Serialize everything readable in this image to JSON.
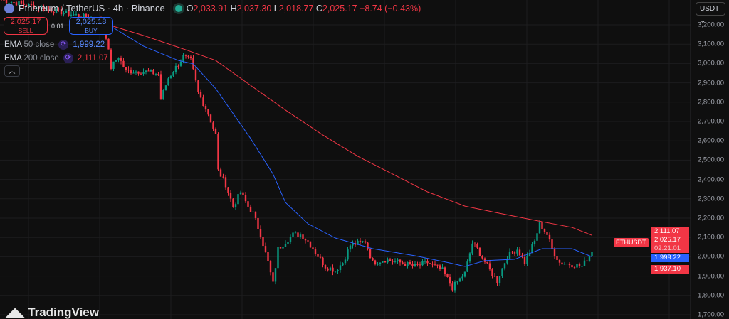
{
  "header": {
    "symbol": "Ethereum / TetherUS · 4h · Binance",
    "open_label": "O",
    "open": "2,033.91",
    "high_label": "H",
    "high": "2,037.30",
    "low_label": "L",
    "low": "2,018.77",
    "close_label": "C",
    "close": "2,025.17",
    "change": "−8.74 (−0.43%)"
  },
  "trade": {
    "sell_price": "2,025.17",
    "sell_label": "SELL",
    "spread": "0.01",
    "buy_price": "2,025.18",
    "buy_label": "BUY"
  },
  "indicators": [
    {
      "label": "EMA",
      "params": "50 close",
      "value": "1,999.22",
      "color": "#2962ff"
    },
    {
      "label": "EMA",
      "params": "200 close",
      "value": "2,111.07",
      "color": "#f23645"
    }
  ],
  "currency": "USDT ⌄",
  "price_labels": {
    "ema200": "2,111.07",
    "last": "2,025.17",
    "countdown": "02:21:01",
    "ema50": "1,999.22",
    "level": "1,937.10",
    "symbol_tag": "ETHUSDT"
  },
  "logo": "TradingView",
  "colors": {
    "up": "#089981",
    "down": "#f23645",
    "ema50": "#2962ff",
    "ema200": "#f23645",
    "background": "#0f0f0f"
  },
  "chart_data": {
    "type": "candlestick",
    "xlabel": "",
    "ylabel": "",
    "ylim": [
      1680,
      3330
    ],
    "y_ticks": [
      "3,200.00",
      "3,100.00",
      "3,000.00",
      "2,900.00",
      "2,800.00",
      "2,700.00",
      "2,600.00",
      "2,500.00",
      "2,400.00",
      "2,300.00",
      "2,200.00",
      "2,100.00",
      "2,000.00",
      "1,900.00",
      "1,800.00",
      "1,700.00"
    ],
    "grid": true,
    "close_path": [
      [
        0,
        3330
      ],
      [
        41,
        3220
      ],
      [
        44,
        2980
      ],
      [
        47,
        3035
      ],
      [
        50,
        2960
      ],
      [
        57,
        2960
      ],
      [
        63,
        2945
      ],
      [
        64,
        2815
      ],
      [
        67,
        2925
      ],
      [
        73,
        3035
      ],
      [
        76,
        3015
      ],
      [
        79,
        2850
      ],
      [
        83,
        2740
      ],
      [
        86,
        2630
      ],
      [
        87,
        2445
      ],
      [
        90,
        2375
      ],
      [
        93,
        2260
      ],
      [
        96,
        2335
      ],
      [
        99,
        2260
      ],
      [
        101,
        2225
      ],
      [
        104,
        2115
      ],
      [
        107,
        1970
      ],
      [
        109,
        1860
      ],
      [
        111,
        2040
      ],
      [
        114,
        2080
      ],
      [
        117,
        2115
      ],
      [
        120,
        2115
      ],
      [
        123,
        2080
      ],
      [
        127,
        2005
      ],
      [
        130,
        1950
      ],
      [
        134,
        1930
      ],
      [
        137,
        1970
      ],
      [
        140,
        2060
      ],
      [
        146,
        2080
      ],
      [
        149,
        1970
      ],
      [
        154,
        1985
      ],
      [
        160,
        1970
      ],
      [
        166,
        1950
      ],
      [
        171,
        1970
      ],
      [
        177,
        1930
      ],
      [
        181,
        1840
      ],
      [
        186,
        1915
      ],
      [
        189,
        2070
      ],
      [
        191,
        2040
      ],
      [
        196,
        1930
      ],
      [
        199,
        1875
      ],
      [
        203,
        2005
      ],
      [
        207,
        2040
      ],
      [
        210,
        1970
      ],
      [
        214,
        2080
      ],
      [
        216,
        2170
      ],
      [
        219,
        2115
      ],
      [
        221,
        2040
      ],
      [
        224,
        1970
      ],
      [
        229,
        1960
      ],
      [
        233,
        1950
      ],
      [
        237,
        2025
      ]
    ],
    "series": [
      {
        "name": "EMA 50 close",
        "values": [
          [
            43,
            3200
          ],
          [
            57,
            3090
          ],
          [
            71,
            3016
          ],
          [
            77,
            2998
          ],
          [
            86,
            2870
          ],
          [
            100,
            2612
          ],
          [
            109,
            2428
          ],
          [
            114,
            2281
          ],
          [
            123,
            2171
          ],
          [
            134,
            2097
          ],
          [
            149,
            2042
          ],
          [
            166,
            2005
          ],
          [
            180,
            1968
          ],
          [
            186,
            1950
          ],
          [
            194,
            1980
          ],
          [
            206,
            1987
          ],
          [
            217,
            2042
          ],
          [
            229,
            2042
          ],
          [
            237,
            2000
          ]
        ]
      },
      {
        "name": "EMA 200 close",
        "values": [
          [
            43,
            3200
          ],
          [
            57,
            3145
          ],
          [
            74,
            3071
          ],
          [
            86,
            3016
          ],
          [
            100,
            2887
          ],
          [
            114,
            2759
          ],
          [
            129,
            2630
          ],
          [
            143,
            2520
          ],
          [
            157,
            2428
          ],
          [
            171,
            2336
          ],
          [
            186,
            2262
          ],
          [
            200,
            2225
          ],
          [
            214,
            2189
          ],
          [
            229,
            2152
          ],
          [
            237,
            2111
          ]
        ]
      }
    ],
    "horizontal_lines": [
      2025.17,
      1937.1
    ]
  }
}
